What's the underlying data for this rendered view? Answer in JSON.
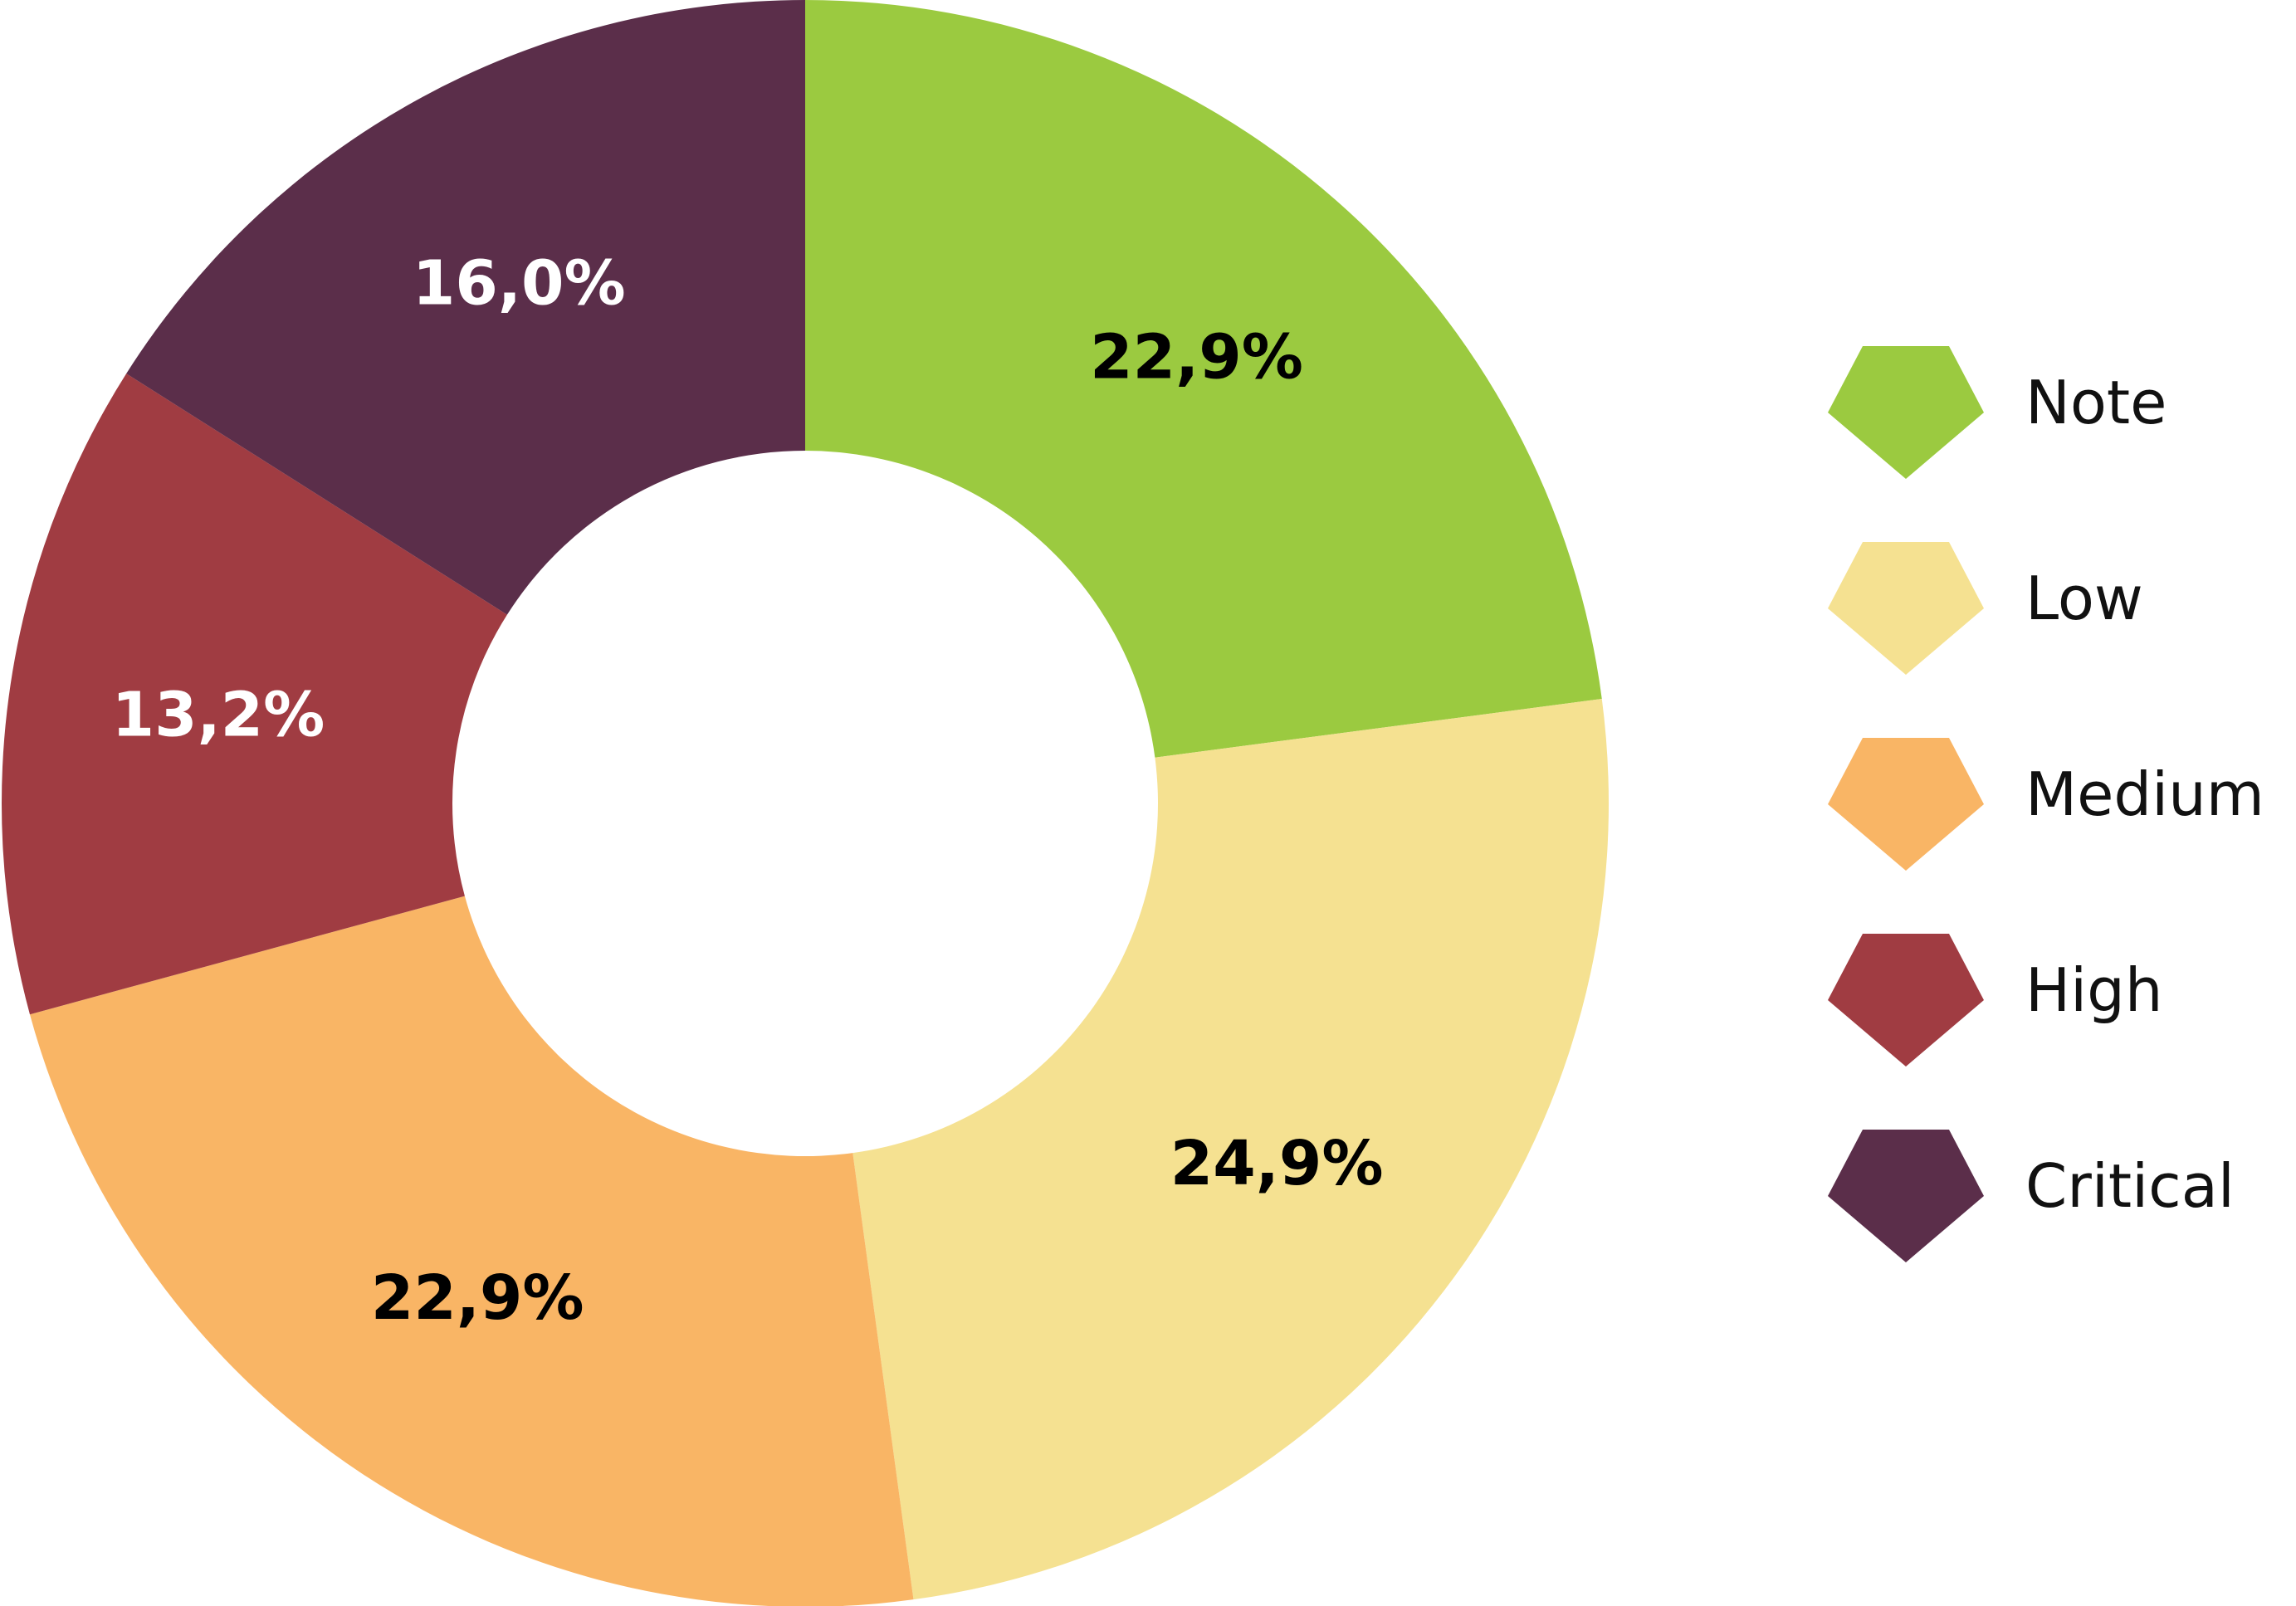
{
  "chart_data": {
    "type": "pie",
    "donut": true,
    "start_angle_deg": 0,
    "direction": "clockwise",
    "slices": [
      {
        "label": "Note",
        "value": 22.9,
        "display": "22,9%",
        "color": "#9bca40",
        "label_color": "#000000"
      },
      {
        "label": "Low",
        "value": 24.9,
        "display": "24,9%",
        "color": "#f5e191",
        "label_color": "#000000"
      },
      {
        "label": "Medium",
        "value": 22.9,
        "display": "22,9%",
        "color": "#f9b565",
        "label_color": "#000000"
      },
      {
        "label": "High",
        "value": 13.2,
        "display": "13,2%",
        "color": "#a03c42",
        "label_color": "#ffffff"
      },
      {
        "label": "Critical",
        "value": 16.0,
        "display": "16,0%",
        "color": "#5b2e4a",
        "label_color": "#ffffff"
      }
    ],
    "legend_position": "right"
  }
}
